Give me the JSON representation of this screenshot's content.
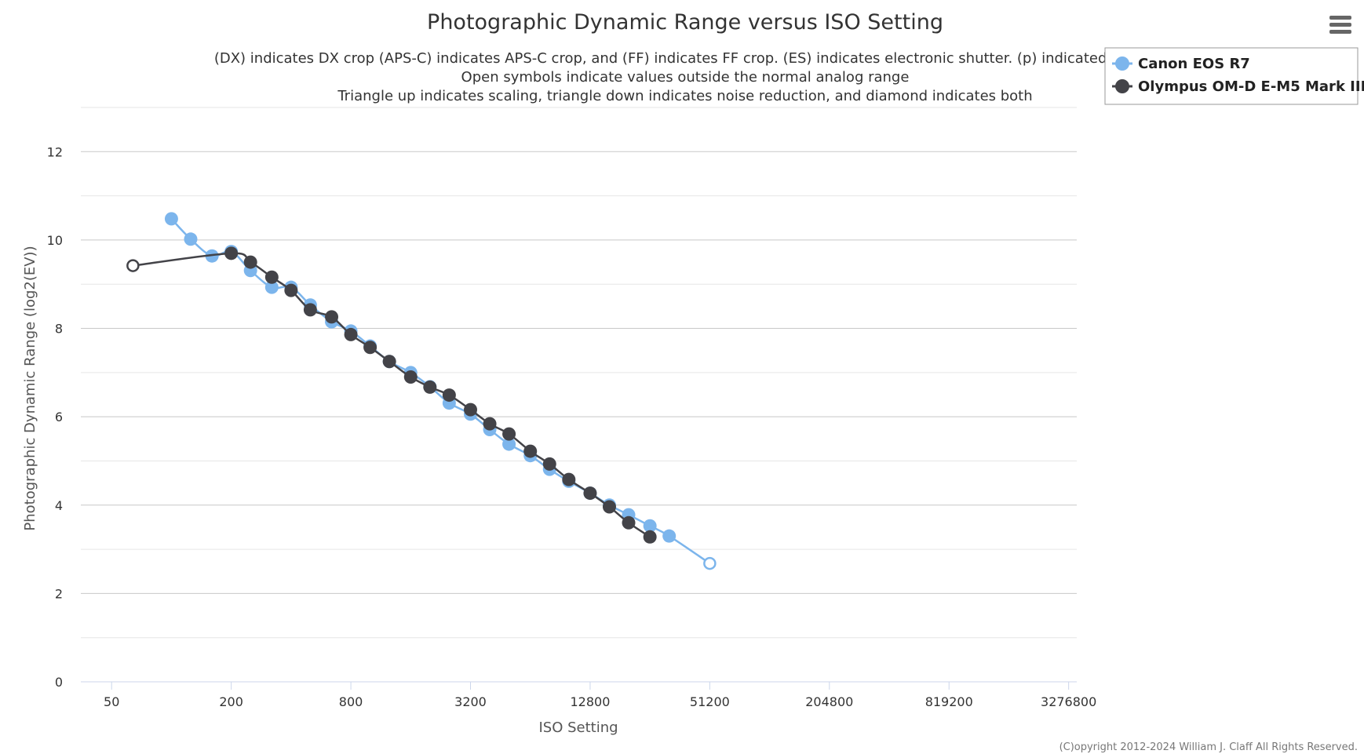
{
  "chart_data": {
    "type": "line",
    "title": "Photographic Dynamic Range versus ISO Setting",
    "subtitle": [
      "(DX) indicates DX crop (APS-C) indicates APS-C crop, and (FF) indicates FF crop. (ES) indicates electronic shutter. (p) indicated prelim",
      "Open symbols indicate values outside the normal analog range",
      "Triangle up indicates scaling, triangle down indicates noise reduction, and diamond indicates both"
    ],
    "xlabel": "ISO Setting",
    "ylabel": "Photographic Dynamic Range (log2(EV))",
    "x_scale": "log2",
    "xlim": [
      35,
      3600000
    ],
    "ylim": [
      0,
      13
    ],
    "x_ticks": [
      50,
      200,
      800,
      3200,
      12800,
      51200,
      204800,
      819200,
      3276800
    ],
    "y_ticks": [
      0,
      2,
      4,
      6,
      8,
      10,
      12
    ],
    "grid": true,
    "legend_position": "top-right",
    "series": [
      {
        "name": "Canon EOS R7",
        "color": "#7cb5ec",
        "marker": "circle",
        "points": [
          {
            "x": 100,
            "y": 10.48
          },
          {
            "x": 125,
            "y": 10.02
          },
          {
            "x": 160,
            "y": 9.64
          },
          {
            "x": 200,
            "y": 9.74
          },
          {
            "x": 250,
            "y": 9.31
          },
          {
            "x": 320,
            "y": 8.93
          },
          {
            "x": 400,
            "y": 8.93
          },
          {
            "x": 500,
            "y": 8.53
          },
          {
            "x": 640,
            "y": 8.15
          },
          {
            "x": 800,
            "y": 7.94
          },
          {
            "x": 1000,
            "y": 7.6
          },
          {
            "x": 1250,
            "y": 7.25
          },
          {
            "x": 1600,
            "y": 7.0
          },
          {
            "x": 2000,
            "y": 6.68
          },
          {
            "x": 2500,
            "y": 6.31
          },
          {
            "x": 3200,
            "y": 6.06
          },
          {
            "x": 4000,
            "y": 5.71
          },
          {
            "x": 5000,
            "y": 5.38
          },
          {
            "x": 6400,
            "y": 5.12
          },
          {
            "x": 8000,
            "y": 4.81
          },
          {
            "x": 10000,
            "y": 4.54
          },
          {
            "x": 12800,
            "y": 4.27
          },
          {
            "x": 16000,
            "y": 4.0
          },
          {
            "x": 20000,
            "y": 3.78
          },
          {
            "x": 25600,
            "y": 3.53
          },
          {
            "x": 32000,
            "y": 3.3
          },
          {
            "x": 51200,
            "y": 2.68,
            "open": true
          }
        ]
      },
      {
        "name": "Olympus OM-D E-M5 Mark III",
        "color": "#434348",
        "marker": "circle",
        "points": [
          {
            "x": 64,
            "y": 9.42,
            "open": true
          },
          {
            "x": 200,
            "y": 9.7
          },
          {
            "x": 250,
            "y": 9.5
          },
          {
            "x": 320,
            "y": 9.16
          },
          {
            "x": 400,
            "y": 8.86
          },
          {
            "x": 500,
            "y": 8.42
          },
          {
            "x": 640,
            "y": 8.26
          },
          {
            "x": 800,
            "y": 7.86
          },
          {
            "x": 1000,
            "y": 7.57
          },
          {
            "x": 1250,
            "y": 7.25
          },
          {
            "x": 1600,
            "y": 6.9
          },
          {
            "x": 2000,
            "y": 6.67
          },
          {
            "x": 2500,
            "y": 6.49
          },
          {
            "x": 3200,
            "y": 6.16
          },
          {
            "x": 4000,
            "y": 5.84
          },
          {
            "x": 5000,
            "y": 5.61
          },
          {
            "x": 6400,
            "y": 5.22
          },
          {
            "x": 8000,
            "y": 4.93
          },
          {
            "x": 10000,
            "y": 4.58
          },
          {
            "x": 12800,
            "y": 4.27
          },
          {
            "x": 16000,
            "y": 3.96
          },
          {
            "x": 20000,
            "y": 3.6
          },
          {
            "x": 25600,
            "y": 3.28
          }
        ]
      }
    ],
    "credits": "(C)opyright 2012-2024 William J. Claff All Rights Reserved."
  },
  "toolbar": {
    "menu_icon": "hamburger-menu-icon"
  }
}
